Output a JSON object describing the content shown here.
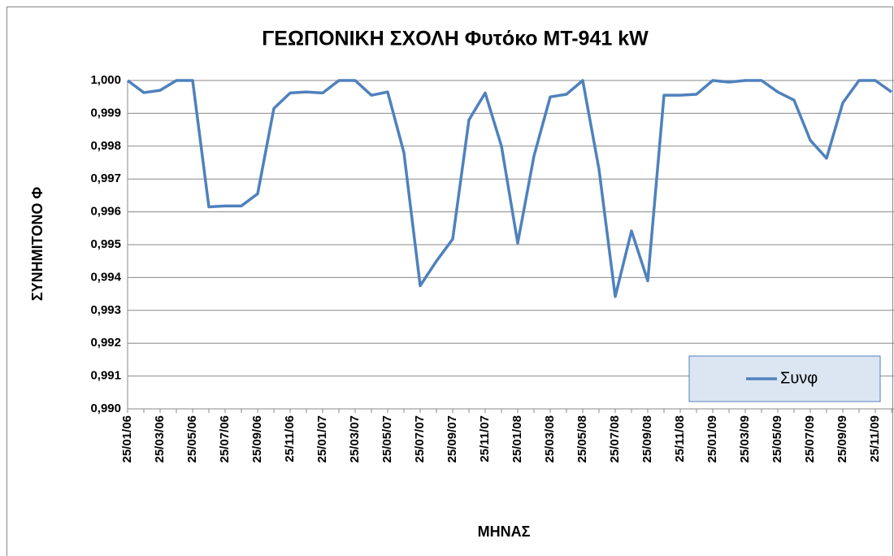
{
  "chart_data": {
    "type": "line",
    "title": "ΓΕΩΠΟΝΙΚΗ ΣΧΟΛΗ Φυτόκο ΜΤ-941 kW",
    "xlabel": "ΜΗΝΑΣ",
    "ylabel": "ΣΥΝΗΜΙΤΟΝΟ Φ",
    "categories": [
      "25/01/06",
      null,
      "25/03/06",
      null,
      "25/05/06",
      null,
      "25/07/06",
      null,
      "25/09/06",
      null,
      "25/11/06",
      null,
      "25/01/07",
      null,
      "25/03/07",
      null,
      "25/05/07",
      null,
      "25/07/07",
      null,
      "25/09/07",
      null,
      "25/11/07",
      null,
      "25/01/08",
      null,
      "25/03/08",
      null,
      "25/05/08",
      null,
      "25/07/08",
      null,
      "25/09/08",
      null,
      "25/11/08",
      null,
      "25/01/09",
      null,
      "25/03/09",
      null,
      "25/05/09",
      null,
      "25/07/09",
      null,
      "25/09/09",
      null,
      "25/11/09",
      null
    ],
    "series": [
      {
        "name": "Συνφ",
        "color": "#4f81bd",
        "values": [
          1.0,
          0.99963,
          0.9997,
          1.0,
          1.0,
          0.99615,
          0.99618,
          0.99618,
          0.99655,
          0.99915,
          0.99962,
          0.99965,
          0.99962,
          1.0,
          1.0,
          0.99955,
          0.99965,
          0.9978,
          0.99375,
          0.9945,
          0.99517,
          0.9988,
          0.99962,
          0.998,
          0.99505,
          0.9977,
          0.9995,
          0.99958,
          1.0,
          0.9973,
          0.99342,
          0.99542,
          0.9939,
          0.99955,
          0.99955,
          0.99958,
          1.0,
          0.99995,
          1.0,
          1.0,
          0.99965,
          0.9994,
          0.99818,
          0.99763,
          0.99932,
          1.0,
          1.0,
          0.99965
        ]
      }
    ],
    "ylim": [
      0.99,
      1.0
    ],
    "yticks": [
      {
        "value": 0.99,
        "label": "0,990"
      },
      {
        "value": 0.991,
        "label": "0,991"
      },
      {
        "value": 0.992,
        "label": "0,992"
      },
      {
        "value": 0.993,
        "label": "0,993"
      },
      {
        "value": 0.994,
        "label": "0,994"
      },
      {
        "value": 0.995,
        "label": "0,995"
      },
      {
        "value": 0.996,
        "label": "0,996"
      },
      {
        "value": 0.997,
        "label": "0,997"
      },
      {
        "value": 0.998,
        "label": "0,998"
      },
      {
        "value": 0.999,
        "label": "0,999"
      },
      {
        "value": 1.0,
        "label": "1,000"
      }
    ],
    "grid": true,
    "legend": "lower right"
  }
}
